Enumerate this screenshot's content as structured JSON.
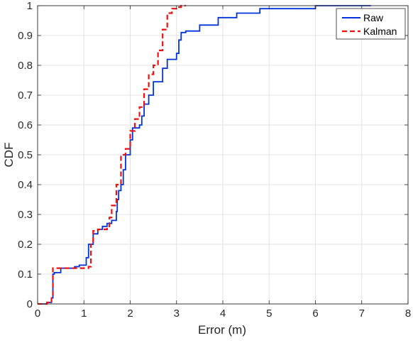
{
  "chart_data": {
    "type": "line",
    "title": "",
    "xlabel": "Error (m)",
    "ylabel": "CDF",
    "xlim": [
      0,
      8
    ],
    "ylim": [
      0,
      1
    ],
    "xticks": [
      "0",
      "1",
      "2",
      "3",
      "4",
      "5",
      "6",
      "7",
      "8"
    ],
    "yticks": [
      "0",
      "0.1",
      "0.2",
      "0.3",
      "0.4",
      "0.5",
      "0.6",
      "0.7",
      "0.8",
      "0.9",
      "1"
    ],
    "grid": true,
    "legend_position": "top-right",
    "series": [
      {
        "name": "Raw",
        "color": "#0033dd",
        "dash": "solid",
        "x": [
          0.0,
          0.2,
          0.3,
          0.33,
          0.36,
          0.5,
          0.8,
          0.9,
          1.0,
          1.05,
          1.1,
          1.2,
          1.3,
          1.4,
          1.5,
          1.6,
          1.7,
          1.72,
          1.75,
          1.8,
          1.85,
          1.9,
          2.0,
          2.05,
          2.1,
          2.2,
          2.25,
          2.3,
          2.4,
          2.5,
          2.6,
          2.7,
          2.8,
          2.9,
          3.0,
          3.05,
          3.1,
          3.2,
          3.5,
          3.9,
          4.3,
          4.8,
          5.3,
          6.0,
          7.2
        ],
        "y": [
          0.0,
          0.005,
          0.02,
          0.1,
          0.105,
          0.12,
          0.125,
          0.13,
          0.13,
          0.155,
          0.2,
          0.235,
          0.25,
          0.26,
          0.27,
          0.28,
          0.31,
          0.35,
          0.38,
          0.4,
          0.45,
          0.5,
          0.55,
          0.59,
          0.59,
          0.6,
          0.63,
          0.67,
          0.7,
          0.745,
          0.745,
          0.79,
          0.82,
          0.82,
          0.84,
          0.885,
          0.91,
          0.915,
          0.935,
          0.96,
          0.975,
          0.99,
          0.99,
          1.0,
          1.0
        ]
      },
      {
        "name": "Kalman",
        "color": "#ee1111",
        "dash": "dashed",
        "x": [
          0.0,
          0.2,
          0.3,
          0.33,
          0.5,
          1.1,
          1.15,
          1.2,
          1.3,
          1.5,
          1.55,
          1.6,
          1.7,
          1.8,
          1.9,
          2.0,
          2.1,
          2.2,
          2.3,
          2.4,
          2.5,
          2.6,
          2.7,
          2.8,
          2.9,
          3.0,
          3.1,
          3.2
        ],
        "y": [
          0.0,
          0.005,
          0.03,
          0.12,
          0.12,
          0.125,
          0.2,
          0.245,
          0.25,
          0.26,
          0.29,
          0.33,
          0.4,
          0.5,
          0.52,
          0.58,
          0.62,
          0.66,
          0.72,
          0.77,
          0.8,
          0.85,
          0.92,
          0.975,
          0.99,
          0.995,
          1.0,
          1.0
        ]
      }
    ]
  }
}
